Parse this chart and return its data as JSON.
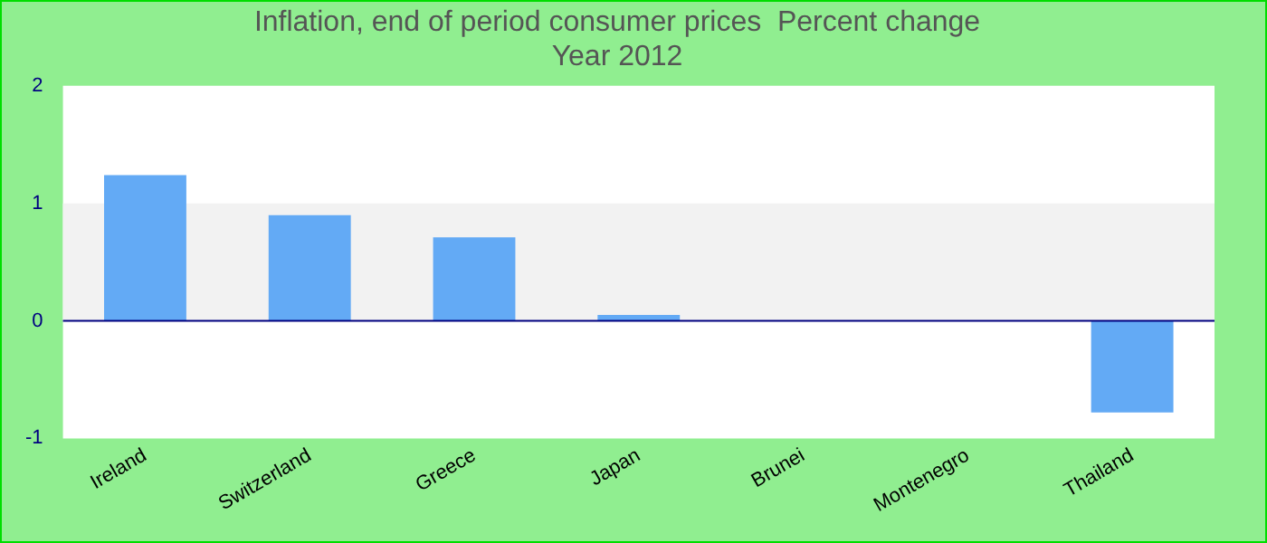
{
  "chart_data": {
    "type": "bar",
    "title": "Inflation, end of period consumer prices  Percent change",
    "subtitle": "Year 2012",
    "categories": [
      "Ireland",
      "Switzerland",
      "Greece",
      "Japan",
      "Brunei",
      "Montenegro",
      "Thailand"
    ],
    "values": [
      1.24,
      0.9,
      0.71,
      0.05,
      0,
      0,
      -0.78
    ],
    "color": "#63aaf5",
    "ylim": [
      -1,
      2
    ],
    "yticks": [
      -1,
      0,
      1,
      2
    ],
    "grid": false,
    "legend": false,
    "ref_lines": [
      {
        "axis": "y",
        "value": 0,
        "color": "#000080"
      }
    ],
    "bands": [
      {
        "axis": "y",
        "from": 0,
        "to": 1,
        "color": "#f2f2f2"
      }
    ]
  }
}
